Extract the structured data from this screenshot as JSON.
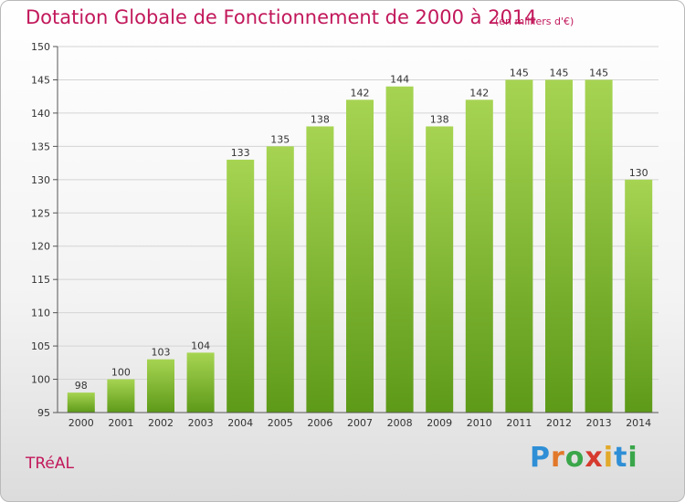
{
  "chart_data": {
    "type": "bar",
    "title": "Dotation Globale de Fonctionnement de 2000 à 2014",
    "unit_note": "(en milliers d'€)",
    "categories": [
      "2000",
      "2001",
      "2002",
      "2003",
      "2004",
      "2005",
      "2006",
      "2007",
      "2008",
      "2009",
      "2010",
      "2011",
      "2012",
      "2013",
      "2014"
    ],
    "values": [
      98,
      100,
      103,
      104,
      133,
      135,
      138,
      142,
      144,
      138,
      142,
      145,
      145,
      145,
      130
    ],
    "ylim": [
      95,
      150
    ],
    "yticks": [
      95,
      100,
      105,
      110,
      115,
      120,
      125,
      130,
      135,
      140,
      145,
      150
    ],
    "grid": true,
    "bar_color_top": "#a6d452",
    "bar_color_bottom": "#5d9a18"
  },
  "commune": "TRéAL",
  "logo": {
    "letters": [
      "P",
      "r",
      "o",
      "x",
      "i",
      "t",
      "i"
    ],
    "colors": [
      "#2f8fd6",
      "#e2782a",
      "#3aa64a",
      "#d63a2f",
      "#e2a92a",
      "#2f8fd6",
      "#3aa64a"
    ]
  },
  "colors": {
    "accent": "#c2185b"
  }
}
